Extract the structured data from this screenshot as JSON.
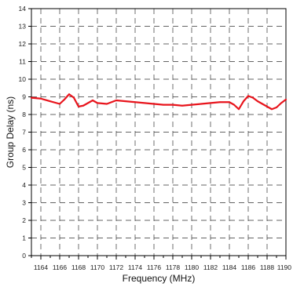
{
  "chart_data": {
    "type": "line",
    "title": "",
    "xlabel": "Frequency (MHz)",
    "ylabel": "Group Delay (ns)",
    "xlim": [
      1163,
      1190
    ],
    "ylim": [
      0,
      14
    ],
    "x_ticks": [
      1164,
      1166,
      1168,
      1170,
      1172,
      1174,
      1176,
      1178,
      1180,
      1182,
      1184,
      1186,
      1188,
      1190
    ],
    "x_tick_labels": [
      "1164",
      "1166",
      "1168",
      "1170",
      "1172",
      "1174",
      "1176",
      "1178",
      "1180",
      "1182",
      "1184",
      "1186",
      "1188",
      "1190"
    ],
    "y_ticks": [
      0,
      1,
      2,
      3,
      4,
      5,
      6,
      7,
      8,
      9,
      10,
      11,
      12,
      13,
      14
    ],
    "y_tick_labels": [
      "0",
      "1",
      "2",
      "3",
      "4",
      "5",
      "6",
      "7",
      "8",
      "9",
      "10",
      "11",
      "12",
      "13",
      "14"
    ],
    "grid": true,
    "grid_style": "dashed",
    "series": [
      {
        "color": "#e8141c",
        "x": [
          1163,
          1164,
          1165,
          1166,
          1166.5,
          1167,
          1167.5,
          1168,
          1168.5,
          1169,
          1169.5,
          1170,
          1171,
          1172,
          1173,
          1174,
          1175,
          1176,
          1177,
          1178,
          1179,
          1180,
          1181,
          1182,
          1183,
          1184,
          1184.5,
          1185,
          1185.5,
          1186,
          1186.5,
          1187,
          1187.5,
          1188,
          1188.5,
          1189,
          1189.5,
          1190
        ],
        "y": [
          8.95,
          8.9,
          8.75,
          8.6,
          8.85,
          9.15,
          8.95,
          8.45,
          8.5,
          8.65,
          8.8,
          8.65,
          8.6,
          8.8,
          8.75,
          8.7,
          8.65,
          8.6,
          8.55,
          8.55,
          8.5,
          8.55,
          8.6,
          8.65,
          8.7,
          8.7,
          8.55,
          8.3,
          8.75,
          9.05,
          8.95,
          8.75,
          8.6,
          8.45,
          8.3,
          8.4,
          8.65,
          8.85
        ]
      }
    ]
  }
}
